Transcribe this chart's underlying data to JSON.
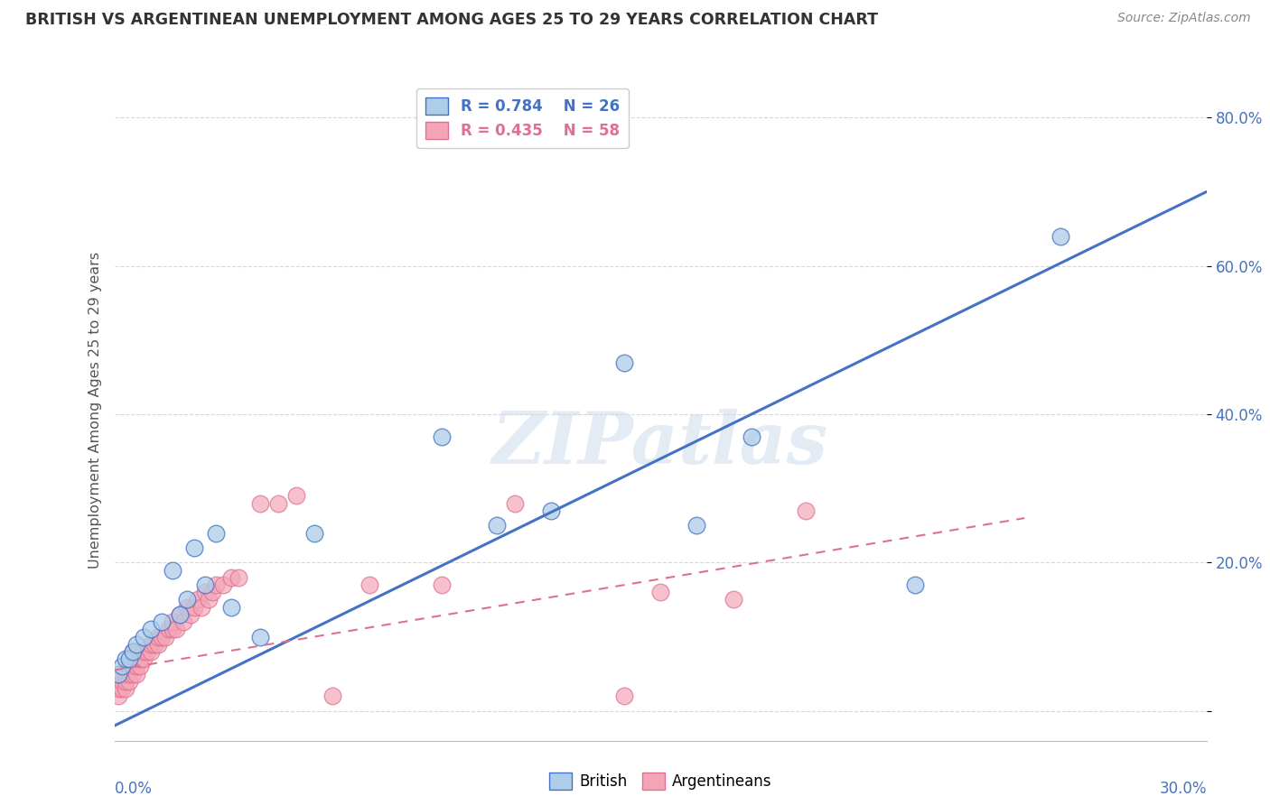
{
  "title": "BRITISH VS ARGENTINEAN UNEMPLOYMENT AMONG AGES 25 TO 29 YEARS CORRELATION CHART",
  "source": "Source: ZipAtlas.com",
  "ylabel": "Unemployment Among Ages 25 to 29 years",
  "xlim": [
    0.0,
    0.3
  ],
  "ylim": [
    -0.04,
    0.85
  ],
  "ytick_vals": [
    0.0,
    0.2,
    0.4,
    0.6,
    0.8
  ],
  "ytick_labels": [
    "",
    "20.0%",
    "40.0%",
    "60.0%",
    "80.0%"
  ],
  "british_R": 0.784,
  "british_N": 26,
  "argentinean_R": 0.435,
  "argentinean_N": 58,
  "british_color": "#aecde8",
  "argentinean_color": "#f4a6b8",
  "british_line_color": "#4472c4",
  "argentinean_line_color": "#e07090",
  "british_x": [
    0.001,
    0.002,
    0.003,
    0.004,
    0.005,
    0.006,
    0.008,
    0.01,
    0.013,
    0.016,
    0.018,
    0.02,
    0.022,
    0.025,
    0.028,
    0.032,
    0.04,
    0.055,
    0.09,
    0.105,
    0.12,
    0.14,
    0.16,
    0.175,
    0.22,
    0.26
  ],
  "british_y": [
    0.05,
    0.06,
    0.07,
    0.07,
    0.08,
    0.09,
    0.1,
    0.11,
    0.12,
    0.19,
    0.13,
    0.15,
    0.22,
    0.17,
    0.24,
    0.14,
    0.1,
    0.24,
    0.37,
    0.25,
    0.27,
    0.47,
    0.25,
    0.37,
    0.17,
    0.64
  ],
  "argentinean_x": [
    0.001,
    0.001,
    0.002,
    0.002,
    0.002,
    0.003,
    0.003,
    0.003,
    0.004,
    0.004,
    0.004,
    0.005,
    0.005,
    0.005,
    0.006,
    0.006,
    0.006,
    0.007,
    0.007,
    0.008,
    0.008,
    0.009,
    0.01,
    0.01,
    0.011,
    0.012,
    0.012,
    0.013,
    0.014,
    0.015,
    0.016,
    0.016,
    0.017,
    0.018,
    0.019,
    0.02,
    0.021,
    0.022,
    0.023,
    0.024,
    0.025,
    0.026,
    0.027,
    0.028,
    0.03,
    0.032,
    0.034,
    0.04,
    0.045,
    0.05,
    0.06,
    0.07,
    0.09,
    0.11,
    0.14,
    0.15,
    0.17,
    0.19
  ],
  "argentinean_y": [
    0.02,
    0.03,
    0.03,
    0.04,
    0.05,
    0.03,
    0.04,
    0.05,
    0.04,
    0.05,
    0.06,
    0.05,
    0.06,
    0.08,
    0.05,
    0.06,
    0.07,
    0.06,
    0.07,
    0.07,
    0.08,
    0.08,
    0.08,
    0.09,
    0.09,
    0.09,
    0.1,
    0.1,
    0.1,
    0.11,
    0.11,
    0.12,
    0.11,
    0.13,
    0.12,
    0.14,
    0.13,
    0.14,
    0.15,
    0.14,
    0.16,
    0.15,
    0.16,
    0.17,
    0.17,
    0.18,
    0.18,
    0.28,
    0.28,
    0.29,
    0.02,
    0.17,
    0.17,
    0.28,
    0.02,
    0.16,
    0.15,
    0.27
  ],
  "brit_line_x": [
    0.0,
    0.3
  ],
  "brit_line_y": [
    -0.02,
    0.7
  ],
  "arg_line_x": [
    0.0,
    0.25
  ],
  "arg_line_y": [
    0.055,
    0.26
  ],
  "watermark": "ZIPatlas",
  "background_color": "#ffffff",
  "grid_color": "#d8d8d8"
}
